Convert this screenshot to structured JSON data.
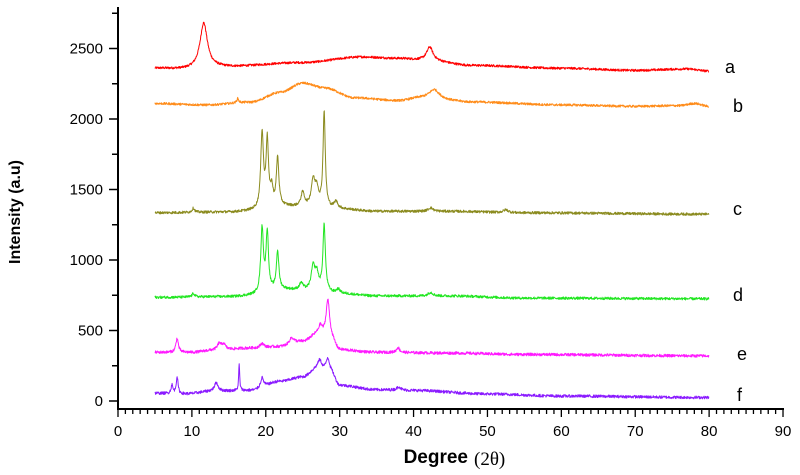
{
  "chart_data": {
    "type": "line",
    "title": "",
    "xlabel": "Degree",
    "xlabel_suffix": "(2θ)",
    "ylabel": "Intensity (a.u)",
    "xlim": [
      0,
      90
    ],
    "ylim": [
      -60,
      2800
    ],
    "x_major_ticks": [
      0,
      10,
      20,
      30,
      40,
      50,
      60,
      70,
      80,
      90
    ],
    "x_minor_step": 1,
    "y_major_ticks": [
      0,
      500,
      1000,
      1500,
      2000,
      2500
    ],
    "y_minor_step": 250,
    "grid": false,
    "legend": "inline labels at right of each trace",
    "x_range_data": [
      5,
      80
    ],
    "series": [
      {
        "name": "a",
        "color": "#ff0000",
        "baseline": [
          [
            5,
            2360
          ],
          [
            9,
            2355
          ],
          [
            14,
            2370
          ],
          [
            25,
            2400
          ],
          [
            33,
            2440
          ],
          [
            38,
            2430
          ],
          [
            41,
            2420
          ],
          [
            48,
            2380
          ],
          [
            60,
            2360
          ],
          [
            70,
            2345
          ],
          [
            77,
            2355
          ],
          [
            80,
            2340
          ]
        ],
        "peaks": [
          [
            11.6,
            320,
            0.6
          ],
          [
            42.2,
            95,
            0.5
          ]
        ],
        "noise": 8
      },
      {
        "name": "b",
        "color": "#ff8c1a",
        "baseline": [
          [
            5,
            2110
          ],
          [
            12,
            2100
          ],
          [
            18,
            2120
          ],
          [
            22,
            2190
          ],
          [
            25,
            2255
          ],
          [
            28,
            2220
          ],
          [
            32,
            2150
          ],
          [
            38,
            2130
          ],
          [
            41,
            2150
          ],
          [
            48,
            2120
          ],
          [
            60,
            2100
          ],
          [
            70,
            2090
          ],
          [
            76,
            2095
          ],
          [
            78,
            2110
          ],
          [
            80,
            2090
          ]
        ],
        "peaks": [
          [
            42.8,
            65,
            0.8
          ],
          [
            16.2,
            30,
            0.15
          ]
        ],
        "noise": 8
      },
      {
        "name": "c",
        "color": "#8b8b1f",
        "baseline": [
          [
            5,
            1335
          ],
          [
            15,
            1340
          ],
          [
            19,
            1350
          ],
          [
            22,
            1380
          ],
          [
            26,
            1370
          ],
          [
            30,
            1360
          ],
          [
            35,
            1345
          ],
          [
            45,
            1345
          ],
          [
            55,
            1335
          ],
          [
            80,
            1325
          ]
        ],
        "peaks": [
          [
            19.5,
            540,
            0.22
          ],
          [
            20.2,
            470,
            0.2
          ],
          [
            20.8,
            120,
            0.2
          ],
          [
            21.6,
            340,
            0.2
          ],
          [
            25.0,
            100,
            0.3
          ],
          [
            26.4,
            180,
            0.3
          ],
          [
            26.9,
            120,
            0.3
          ],
          [
            27.9,
            680,
            0.18
          ],
          [
            29.5,
            50,
            0.3
          ],
          [
            10.2,
            30,
            0.2
          ],
          [
            42.3,
            25,
            0.4
          ],
          [
            52.5,
            20,
            0.4
          ]
        ],
        "noise": 9
      },
      {
        "name": "d",
        "color": "#22e622",
        "baseline": [
          [
            5,
            735
          ],
          [
            15,
            740
          ],
          [
            19,
            750
          ],
          [
            22,
            790
          ],
          [
            26,
            780
          ],
          [
            30,
            760
          ],
          [
            35,
            745
          ],
          [
            45,
            745
          ],
          [
            55,
            730
          ],
          [
            80,
            725
          ]
        ],
        "peaks": [
          [
            19.5,
            460,
            0.22
          ],
          [
            20.2,
            420,
            0.2
          ],
          [
            21.6,
            270,
            0.2
          ],
          [
            24.8,
            50,
            0.3
          ],
          [
            26.4,
            160,
            0.3
          ],
          [
            26.9,
            110,
            0.3
          ],
          [
            27.9,
            470,
            0.2
          ],
          [
            29.8,
            30,
            0.3
          ],
          [
            10.2,
            25,
            0.2
          ],
          [
            42.3,
            25,
            0.4
          ]
        ],
        "noise": 9
      },
      {
        "name": "e",
        "color": "#ff1aff",
        "baseline": [
          [
            5,
            345
          ],
          [
            10,
            345
          ],
          [
            13,
            360
          ],
          [
            18,
            375
          ],
          [
            22,
            385
          ],
          [
            25,
            420
          ],
          [
            27,
            470
          ],
          [
            28.8,
            430
          ],
          [
            30,
            360
          ],
          [
            35,
            345
          ],
          [
            45,
            340
          ],
          [
            55,
            330
          ],
          [
            80,
            320
          ]
        ],
        "peaks": [
          [
            8.0,
            100,
            0.2
          ],
          [
            13.7,
            45,
            0.3
          ],
          [
            14.3,
            40,
            0.3
          ],
          [
            19.5,
            30,
            0.3
          ],
          [
            23.5,
            45,
            0.4
          ],
          [
            27.4,
            60,
            0.3
          ],
          [
            28.4,
            280,
            0.3
          ],
          [
            37.9,
            35,
            0.25
          ]
        ],
        "noise": 10
      },
      {
        "name": "f",
        "color": "#8a1aff",
        "baseline": [
          [
            5,
            55
          ],
          [
            9,
            50
          ],
          [
            13,
            70
          ],
          [
            18,
            75
          ],
          [
            22,
            140
          ],
          [
            25,
            170
          ],
          [
            27,
            230
          ],
          [
            28.8,
            200
          ],
          [
            30,
            110
          ],
          [
            35,
            80
          ],
          [
            40,
            75
          ],
          [
            50,
            50
          ],
          [
            60,
            35
          ],
          [
            80,
            25
          ]
        ],
        "peaks": [
          [
            7.3,
            60,
            0.15
          ],
          [
            8.0,
            120,
            0.15
          ],
          [
            13.3,
            60,
            0.3
          ],
          [
            16.4,
            190,
            0.08
          ],
          [
            19.5,
            70,
            0.25
          ],
          [
            27.3,
            60,
            0.3
          ],
          [
            28.4,
            100,
            0.3
          ],
          [
            38.0,
            25,
            0.3
          ]
        ],
        "noise": 10
      }
    ]
  },
  "labels": {
    "x_title": "Degree",
    "x_title_suffix": "(2θ)",
    "y_title": "Intensity (a.u)",
    "series_labels": [
      "a",
      "b",
      "c",
      "d",
      "e",
      "f"
    ]
  }
}
